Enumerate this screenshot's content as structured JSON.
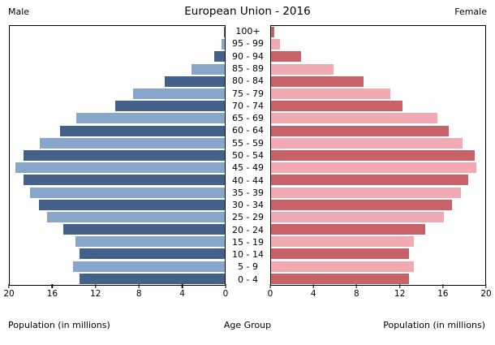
{
  "header": {
    "male_label": "Male",
    "title": "European Union - 2016",
    "female_label": "Female"
  },
  "footer": {
    "left_xlabel": "Population (in millions)",
    "center_label": "Age Group",
    "right_xlabel": "Population (in millions)"
  },
  "colors": {
    "male_dark": "#44618c",
    "male_light": "#88a6ca",
    "female_dark": "#c96169",
    "female_light": "#f1aab1",
    "plot_border": "#000000",
    "background": "#ffffff"
  },
  "chart_data": {
    "type": "bar",
    "subtype": "population_pyramid",
    "title": "European Union - 2016",
    "unit": "millions",
    "xlabel": "Population (in millions)",
    "ylabel": "Age Group",
    "xlim": [
      0,
      20
    ],
    "grid": false,
    "legend_position": "none",
    "age_groups": [
      "100+",
      "95 - 99",
      "90 - 94",
      "85 - 89",
      "80 - 84",
      "75 - 79",
      "70 - 74",
      "65 - 69",
      "60 - 64",
      "55 - 59",
      "50 - 54",
      "45 - 49",
      "40 - 44",
      "35 - 39",
      "30 - 34",
      "25 - 29",
      "20 - 24",
      "15 - 19",
      "10 - 14",
      "5 - 9",
      "0 - 4"
    ],
    "x_ticks_left": [
      "20",
      "16",
      "12",
      "8",
      "4",
      "0"
    ],
    "x_ticks_right": [
      "0",
      "4",
      "8",
      "12",
      "16",
      "20"
    ],
    "series": [
      {
        "name": "Male",
        "side": "left",
        "values": [
          0.1,
          0.3,
          1.0,
          3.1,
          5.6,
          8.5,
          10.2,
          13.8,
          15.3,
          17.2,
          18.7,
          19.5,
          18.7,
          18.1,
          17.3,
          16.5,
          15.0,
          13.9,
          13.5,
          14.1,
          13.5
        ]
      },
      {
        "name": "Female",
        "side": "right",
        "values": [
          0.3,
          0.8,
          2.8,
          5.8,
          8.6,
          11.1,
          12.3,
          15.5,
          16.6,
          17.9,
          19.0,
          19.2,
          18.4,
          17.7,
          16.9,
          16.1,
          14.4,
          13.3,
          12.9,
          13.3,
          12.9
        ]
      }
    ]
  }
}
